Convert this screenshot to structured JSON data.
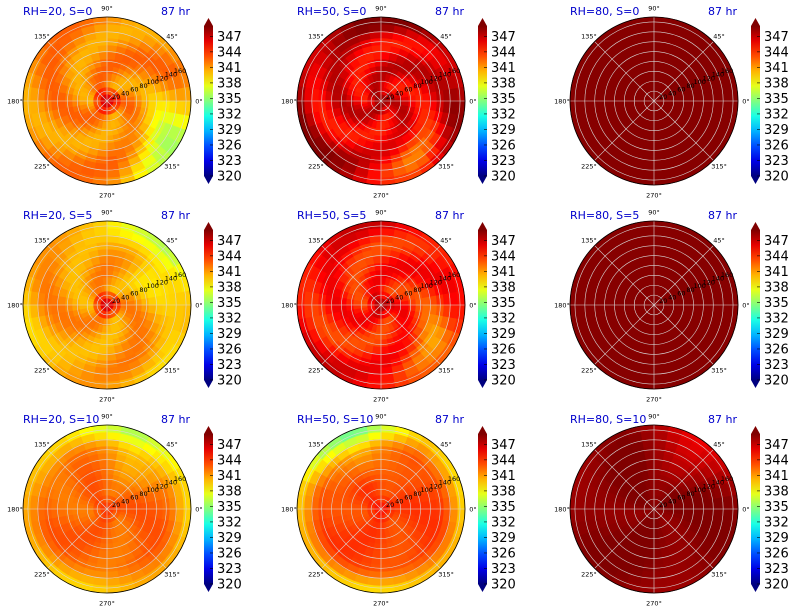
{
  "chart_data": {
    "type": "heatmap",
    "subtype": "polar filled contour",
    "colormap": "jet",
    "colorbar": {
      "range": [
        320,
        349
      ],
      "ticks": [
        320,
        323,
        326,
        329,
        332,
        335,
        338,
        341,
        344,
        347
      ],
      "tick_labels": [
        "320",
        "323",
        "326",
        "329",
        "332",
        "335",
        "338",
        "341",
        "344",
        "347"
      ],
      "extend": "both"
    },
    "angle_labels": [
      "0°",
      "45°",
      "90°",
      "135°",
      "180°",
      "225°",
      "270°",
      "315°"
    ],
    "radial_ticks": [
      20,
      40,
      60,
      80,
      100,
      120,
      140,
      160
    ],
    "radial_labels": [
      "20",
      "40",
      "60",
      "80",
      "100",
      "120",
      "140",
      "160"
    ],
    "radial_max": 170,
    "radial_label_angle_deg": 22.5,
    "grid": true,
    "panels": [
      {
        "title": "RH=20, S=0",
        "time": "87 hr",
        "RH": 20,
        "S": 0,
        "core": 347.5,
        "field": 341.5,
        "rim": 341.5,
        "low": 335,
        "low_sector": 330,
        "swirl": 0.9,
        "radial_labels_visible": true
      },
      {
        "title": "RH=50, S=0",
        "time": "87 hr",
        "RH": 50,
        "S": 0,
        "core": 348.5,
        "field": 346,
        "rim": 348.5,
        "low": 341,
        "low_sector": 300,
        "swirl": 1.1,
        "radial_labels_visible": true
      },
      {
        "title": "RH=80, S=0",
        "time": "87 hr",
        "RH": 80,
        "S": 0,
        "core": 348.8,
        "field": 348.8,
        "rim": 348.8,
        "low": 348.8,
        "low_sector": 0,
        "swirl": 0,
        "radial_labels_visible": true
      },
      {
        "title": "RH=20, S=5",
        "time": "87 hr",
        "RH": 20,
        "S": 5,
        "core": 347.5,
        "field": 341,
        "rim": 340,
        "low": 336,
        "low_sector": 40,
        "swirl": 0.8,
        "radial_labels_visible": true
      },
      {
        "title": "RH=50, S=5",
        "time": "87 hr",
        "RH": 50,
        "S": 5,
        "core": 348,
        "field": 344.5,
        "rim": 346,
        "low": 340,
        "low_sector": 330,
        "swirl": 1.0,
        "radial_labels_visible": true
      },
      {
        "title": "RH=80, S=5",
        "time": "87 hr",
        "RH": 80,
        "S": 5,
        "core": 348.8,
        "field": 348.8,
        "rim": 348.8,
        "low": 348.8,
        "low_sector": 0,
        "swirl": 0,
        "radial_labels_visible": true
      },
      {
        "title": "RH=20, S=10",
        "time": "87 hr",
        "RH": 20,
        "S": 10,
        "core": 344,
        "field": 342.5,
        "rim": 339.5,
        "low": 337,
        "low_sector": 70,
        "swirl": 0.5,
        "radial_labels_visible": true
      },
      {
        "title": "RH=50, S=10",
        "time": "87 hr",
        "RH": 50,
        "S": 10,
        "core": 345,
        "field": 343.5,
        "rim": 339,
        "low": 337,
        "low_sector": 110,
        "swirl": 0.4,
        "radial_labels_visible": true
      },
      {
        "title": "RH=80, S=10",
        "time": "87 hr",
        "RH": 80,
        "S": 10,
        "core": 348.8,
        "field": 348.8,
        "rim": 348.5,
        "low": 346,
        "low_sector": 60,
        "swirl": 0.3,
        "radial_labels_visible": true
      }
    ]
  }
}
